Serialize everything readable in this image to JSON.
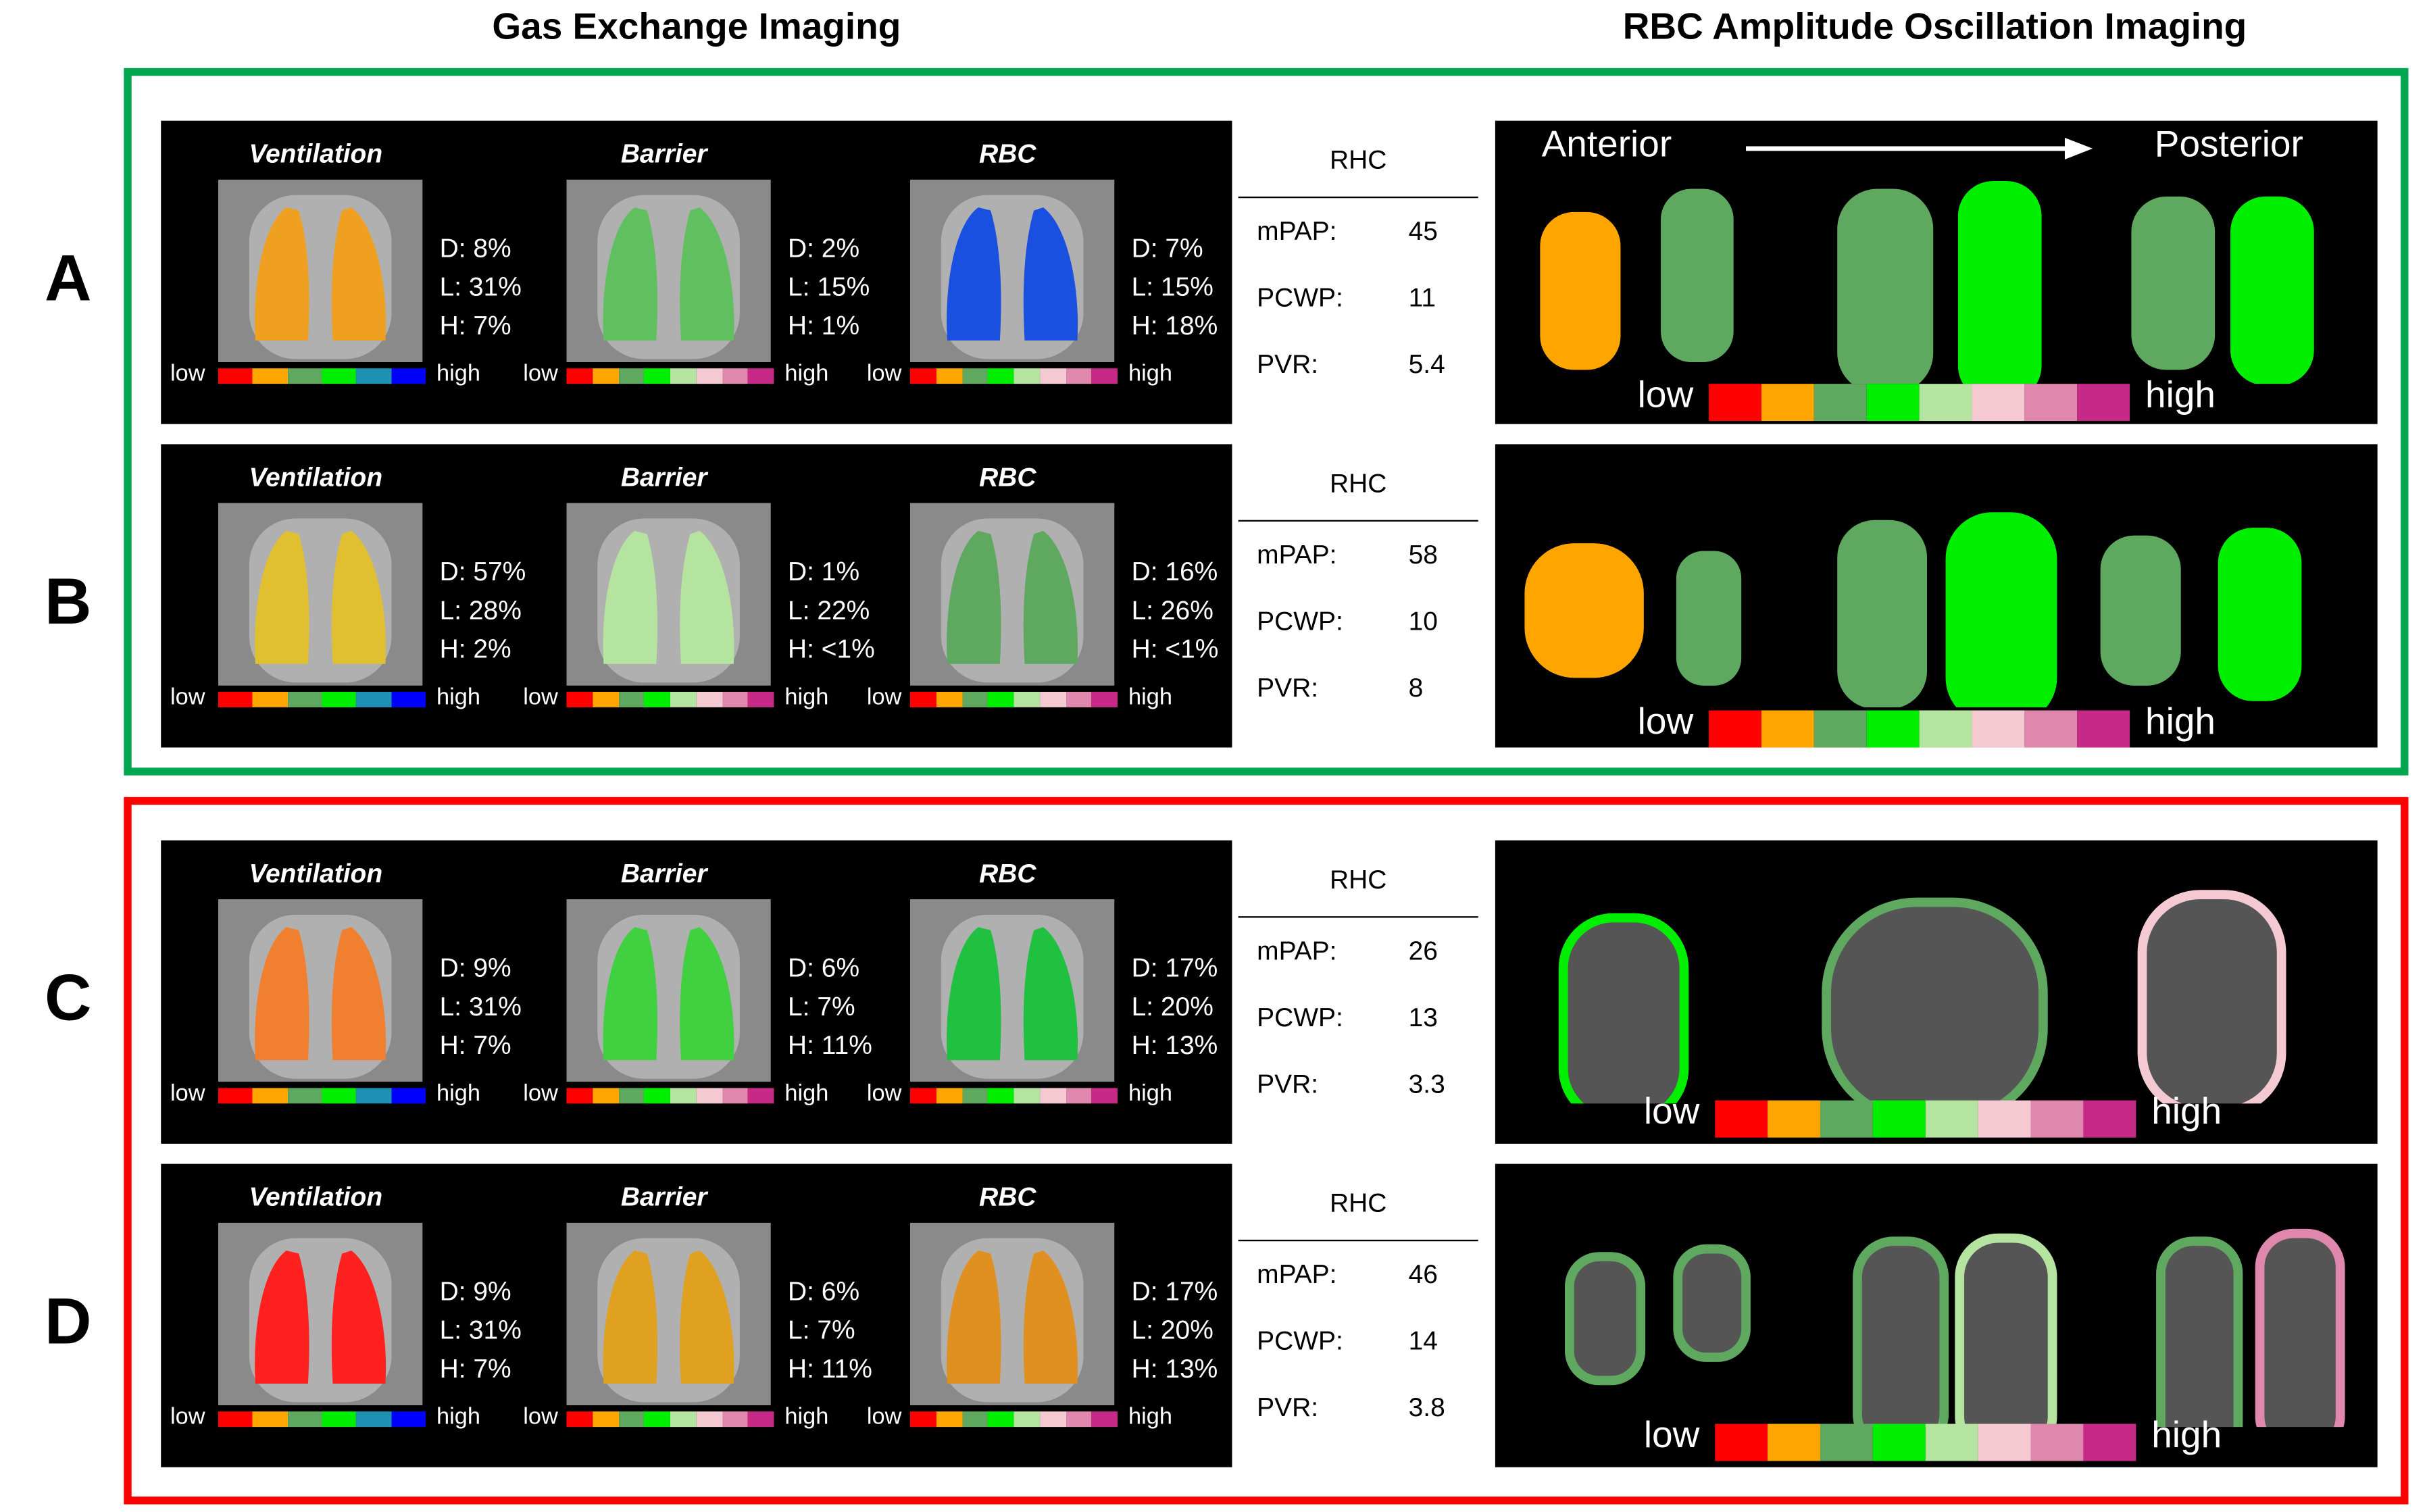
{
  "headers": {
    "left": "Gas Exchange Imaging",
    "right": "RBC Amplitude Oscillation Imaging"
  },
  "orientation": {
    "anterior": "Anterior",
    "posterior": "Posterior"
  },
  "colorbar": {
    "low": "low",
    "high": "high",
    "ventilation_colors": [
      "#ff0000",
      "#ffa500",
      "#5fa85f",
      "#00ee00",
      "#1e90b4",
      "#0000ff"
    ],
    "membrane_colors": [
      "#ff0000",
      "#ffa500",
      "#5fa85f",
      "#00ee00",
      "#b5e3a0",
      "#f5c9d2",
      "#e087ad",
      "#c72a86"
    ],
    "oscillation_colors": [
      "#ff0000",
      "#ffa500",
      "#5fa85f",
      "#00ee00",
      "#b5e3a0",
      "#f5c9d2",
      "#e087ad",
      "#c72a86"
    ]
  },
  "frames": {
    "green": "#00a650",
    "red": "#ff0000"
  },
  "rhc_labels": {
    "title": "RHC",
    "mpap": "mPAP:",
    "pcwp": "PCWP:",
    "pvr": "PVR:"
  },
  "rows": [
    {
      "label": "A",
      "maps": [
        {
          "title": "Ventilation",
          "d": "D: 8%",
          "l": "L: 31%",
          "h": "H: 7%"
        },
        {
          "title": "Barrier",
          "d": "D: 2%",
          "l": "L: 15%",
          "h": "H: 1%"
        },
        {
          "title": "RBC",
          "d": "D: 7%",
          "l": "L: 15%",
          "h": "H: 18%"
        }
      ],
      "rhc": {
        "mpap": "45",
        "pcwp": "11",
        "pvr": "5.4"
      }
    },
    {
      "label": "B",
      "maps": [
        {
          "title": "Ventilation",
          "d": "D: 57%",
          "l": "L: 28%",
          "h": "H: 2%"
        },
        {
          "title": "Barrier",
          "d": "D: 1%",
          "l": "L: 22%",
          "h": "H: <1%"
        },
        {
          "title": "RBC",
          "d": "D: 16%",
          "l": "L: 26%",
          "h": "H: <1%"
        }
      ],
      "rhc": {
        "mpap": "58",
        "pcwp": "10",
        "pvr": "8"
      }
    },
    {
      "label": "C",
      "maps": [
        {
          "title": "Ventilation",
          "d": "D: 9%",
          "l": "L: 31%",
          "h": "H: 7%"
        },
        {
          "title": "Barrier",
          "d": "D: 6%",
          "l": "L: 7%",
          "h": "H: 11%"
        },
        {
          "title": "RBC",
          "d": "D: 17%",
          "l": "L: 20%",
          "h": "H: 13%"
        }
      ],
      "rhc": {
        "mpap": "26",
        "pcwp": "13",
        "pvr": "3.3"
      }
    },
    {
      "label": "D",
      "maps": [
        {
          "title": "Ventilation",
          "d": "D: 9%",
          "l": "L: 31%",
          "h": "H: 7%"
        },
        {
          "title": "Barrier",
          "d": "D: 6%",
          "l": "L: 7%",
          "h": "H: 11%"
        },
        {
          "title": "RBC",
          "d": "D: 17%",
          "l": "L: 20%",
          "h": "H: 13%"
        }
      ],
      "rhc": {
        "mpap": "46",
        "pcwp": "14",
        "pvr": "3.8"
      }
    }
  ]
}
